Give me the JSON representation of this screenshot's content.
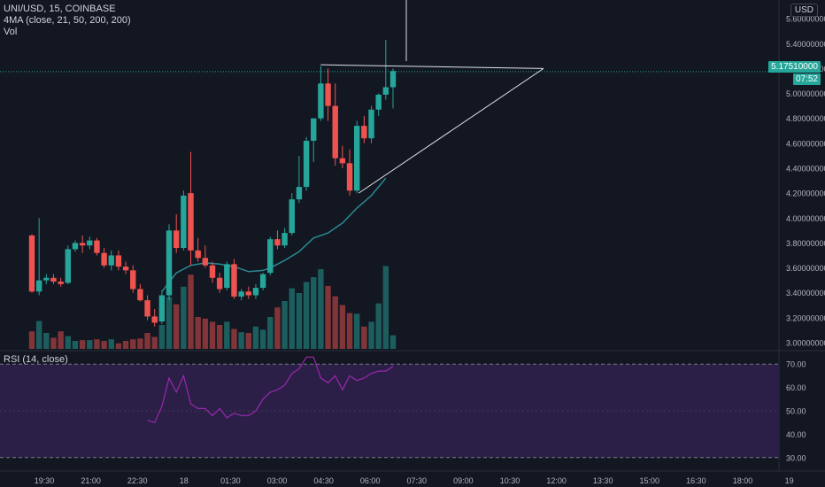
{
  "header": {
    "symbol_line": "UNI/USD, 15, COINBASE",
    "ma_line": "4MA (close, 21, 50, 200, 200)",
    "vol_line": "Vol",
    "currency_button": "USD"
  },
  "rsi_panel": {
    "label": "RSI (14, close)"
  },
  "last_price": {
    "value": "5.17510000",
    "countdown": "07:52"
  },
  "colors": {
    "background": "#131722",
    "up": "#26a69a",
    "down": "#ef5350",
    "ma": "#2a8a91",
    "rsi": "#9c27b0",
    "rsi_band": "#2b1f47",
    "drawing": "#e0e3eb"
  },
  "chart_data": [
    {
      "type": "candlestick",
      "title": "UNI/USD, 15, COINBASE",
      "x_ticks": [
        "19:30",
        "21:00",
        "22:30",
        "18",
        "01:30",
        "03:00",
        "04:30",
        "06:00",
        "07:30",
        "09:00",
        "10:30",
        "12:00",
        "13:30",
        "15:00",
        "16:30",
        "18:00",
        "19"
      ],
      "y_ticks": [
        "3.00000000",
        "3.20000000",
        "3.40000000",
        "3.60000000",
        "3.80000000",
        "4.00000000",
        "4.20000000",
        "4.40000000",
        "4.60000000",
        "4.80000000",
        "5.00000000",
        "5.20000000",
        "5.40000000",
        "5.60000000"
      ],
      "ylim": [
        2.95,
        5.75
      ],
      "candles": [
        {
          "o": 3.86,
          "h": 3.87,
          "l": 3.4,
          "c": 3.41
        },
        {
          "o": 3.41,
          "h": 4.0,
          "l": 3.38,
          "c": 3.5
        },
        {
          "o": 3.5,
          "h": 3.55,
          "l": 3.47,
          "c": 3.52
        },
        {
          "o": 3.52,
          "h": 3.55,
          "l": 3.47,
          "c": 3.49
        },
        {
          "o": 3.49,
          "h": 3.52,
          "l": 3.45,
          "c": 3.47
        },
        {
          "o": 3.48,
          "h": 3.78,
          "l": 3.47,
          "c": 3.75
        },
        {
          "o": 3.75,
          "h": 3.82,
          "l": 3.73,
          "c": 3.8
        },
        {
          "o": 3.8,
          "h": 3.86,
          "l": 3.72,
          "c": 3.78
        },
        {
          "o": 3.78,
          "h": 3.85,
          "l": 3.75,
          "c": 3.82
        },
        {
          "o": 3.82,
          "h": 3.84,
          "l": 3.7,
          "c": 3.72
        },
        {
          "o": 3.72,
          "h": 3.76,
          "l": 3.6,
          "c": 3.62
        },
        {
          "o": 3.62,
          "h": 3.74,
          "l": 3.58,
          "c": 3.7
        },
        {
          "o": 3.7,
          "h": 3.74,
          "l": 3.58,
          "c": 3.61
        },
        {
          "o": 3.61,
          "h": 3.65,
          "l": 3.55,
          "c": 3.58
        },
        {
          "o": 3.58,
          "h": 3.62,
          "l": 3.4,
          "c": 3.43
        },
        {
          "o": 3.43,
          "h": 3.47,
          "l": 3.33,
          "c": 3.34
        },
        {
          "o": 3.34,
          "h": 3.38,
          "l": 3.18,
          "c": 3.21
        },
        {
          "o": 3.21,
          "h": 3.27,
          "l": 3.13,
          "c": 3.16
        },
        {
          "o": 3.17,
          "h": 3.42,
          "l": 3.15,
          "c": 3.38
        },
        {
          "o": 3.38,
          "h": 3.95,
          "l": 3.34,
          "c": 3.9
        },
        {
          "o": 3.9,
          "h": 4.03,
          "l": 3.72,
          "c": 3.76
        },
        {
          "o": 3.76,
          "h": 4.22,
          "l": 3.74,
          "c": 4.18
        },
        {
          "o": 4.2,
          "h": 4.53,
          "l": 3.62,
          "c": 3.74
        },
        {
          "o": 3.74,
          "h": 3.84,
          "l": 3.65,
          "c": 3.68
        },
        {
          "o": 3.68,
          "h": 3.78,
          "l": 3.6,
          "c": 3.62
        },
        {
          "o": 3.62,
          "h": 3.65,
          "l": 3.48,
          "c": 3.52
        },
        {
          "o": 3.52,
          "h": 3.56,
          "l": 3.4,
          "c": 3.43
        },
        {
          "o": 3.44,
          "h": 3.65,
          "l": 3.42,
          "c": 3.63
        },
        {
          "o": 3.63,
          "h": 3.67,
          "l": 3.35,
          "c": 3.37
        },
        {
          "o": 3.37,
          "h": 3.43,
          "l": 3.34,
          "c": 3.41
        },
        {
          "o": 3.41,
          "h": 3.45,
          "l": 3.35,
          "c": 3.38
        },
        {
          "o": 3.38,
          "h": 3.47,
          "l": 3.35,
          "c": 3.44
        },
        {
          "o": 3.44,
          "h": 3.56,
          "l": 3.42,
          "c": 3.55
        },
        {
          "o": 3.56,
          "h": 3.85,
          "l": 3.54,
          "c": 3.83
        },
        {
          "o": 3.83,
          "h": 3.9,
          "l": 3.75,
          "c": 3.78
        },
        {
          "o": 3.78,
          "h": 3.92,
          "l": 3.76,
          "c": 3.88
        },
        {
          "o": 3.88,
          "h": 4.2,
          "l": 3.86,
          "c": 4.15
        },
        {
          "o": 4.15,
          "h": 4.5,
          "l": 4.12,
          "c": 4.25
        },
        {
          "o": 4.25,
          "h": 4.65,
          "l": 4.22,
          "c": 4.62
        },
        {
          "o": 4.62,
          "h": 4.8,
          "l": 4.45,
          "c": 4.8
        },
        {
          "o": 4.8,
          "h": 5.22,
          "l": 4.78,
          "c": 5.08
        },
        {
          "o": 5.08,
          "h": 5.2,
          "l": 4.78,
          "c": 4.9
        },
        {
          "o": 4.9,
          "h": 5.08,
          "l": 4.42,
          "c": 4.48
        },
        {
          "o": 4.48,
          "h": 4.58,
          "l": 4.4,
          "c": 4.44
        },
        {
          "o": 4.44,
          "h": 4.55,
          "l": 4.18,
          "c": 4.22
        },
        {
          "o": 4.22,
          "h": 4.78,
          "l": 4.2,
          "c": 4.74
        },
        {
          "o": 4.74,
          "h": 4.82,
          "l": 4.6,
          "c": 4.64
        },
        {
          "o": 4.64,
          "h": 4.9,
          "l": 4.6,
          "c": 4.87
        },
        {
          "o": 4.87,
          "h": 5.0,
          "l": 4.82,
          "c": 4.99
        },
        {
          "o": 4.99,
          "h": 5.43,
          "l": 4.95,
          "c": 5.05
        },
        {
          "o": 5.05,
          "h": 5.2,
          "l": 4.88,
          "c": 5.18
        }
      ],
      "volume": [
        0.22,
        0.35,
        0.2,
        0.14,
        0.22,
        0.16,
        0.1,
        0.11,
        0.11,
        0.12,
        0.1,
        0.12,
        0.07,
        0.1,
        0.12,
        0.13,
        0.2,
        0.15,
        0.3,
        0.65,
        0.56,
        0.78,
        0.93,
        0.4,
        0.38,
        0.34,
        0.3,
        0.34,
        0.25,
        0.21,
        0.2,
        0.28,
        0.24,
        0.4,
        0.52,
        0.6,
        0.76,
        0.7,
        0.84,
        0.9,
        1.0,
        0.79,
        0.66,
        0.55,
        0.45,
        0.44,
        0.28,
        0.34,
        0.57,
        1.04,
        0.17
      ],
      "moving_average": {
        "x_index": [
          18,
          20,
          22,
          24,
          26,
          28,
          30,
          32,
          33,
          35,
          37,
          39,
          41,
          43,
          45,
          47,
          49
        ],
        "values": [
          3.41,
          3.56,
          3.62,
          3.64,
          3.63,
          3.61,
          3.57,
          3.58,
          3.6,
          3.66,
          3.73,
          3.84,
          3.88,
          3.96,
          4.08,
          4.18,
          4.32
        ]
      }
    },
    {
      "type": "line",
      "title": "RSI (14, close)",
      "y_ticks": [
        "30.00",
        "40.00",
        "50.00",
        "60.00",
        "70.00"
      ],
      "ylim": [
        25,
        75
      ],
      "band": [
        30,
        70
      ],
      "x_index": [
        16,
        17,
        18,
        19,
        20,
        21,
        22,
        23,
        24,
        25,
        26,
        27,
        28,
        29,
        30,
        31,
        32,
        33,
        34,
        35,
        36,
        37,
        38,
        39,
        40,
        41,
        42,
        43,
        44,
        45,
        46,
        47,
        48,
        49,
        50
      ],
      "values": [
        46,
        45,
        52,
        64,
        58,
        65,
        53,
        51,
        51,
        48,
        51,
        47,
        49,
        48,
        48,
        50,
        55,
        58,
        59,
        61,
        66,
        68,
        73,
        73,
        64,
        62,
        65,
        59,
        65,
        63,
        64,
        66,
        67,
        67,
        69
      ]
    }
  ]
}
